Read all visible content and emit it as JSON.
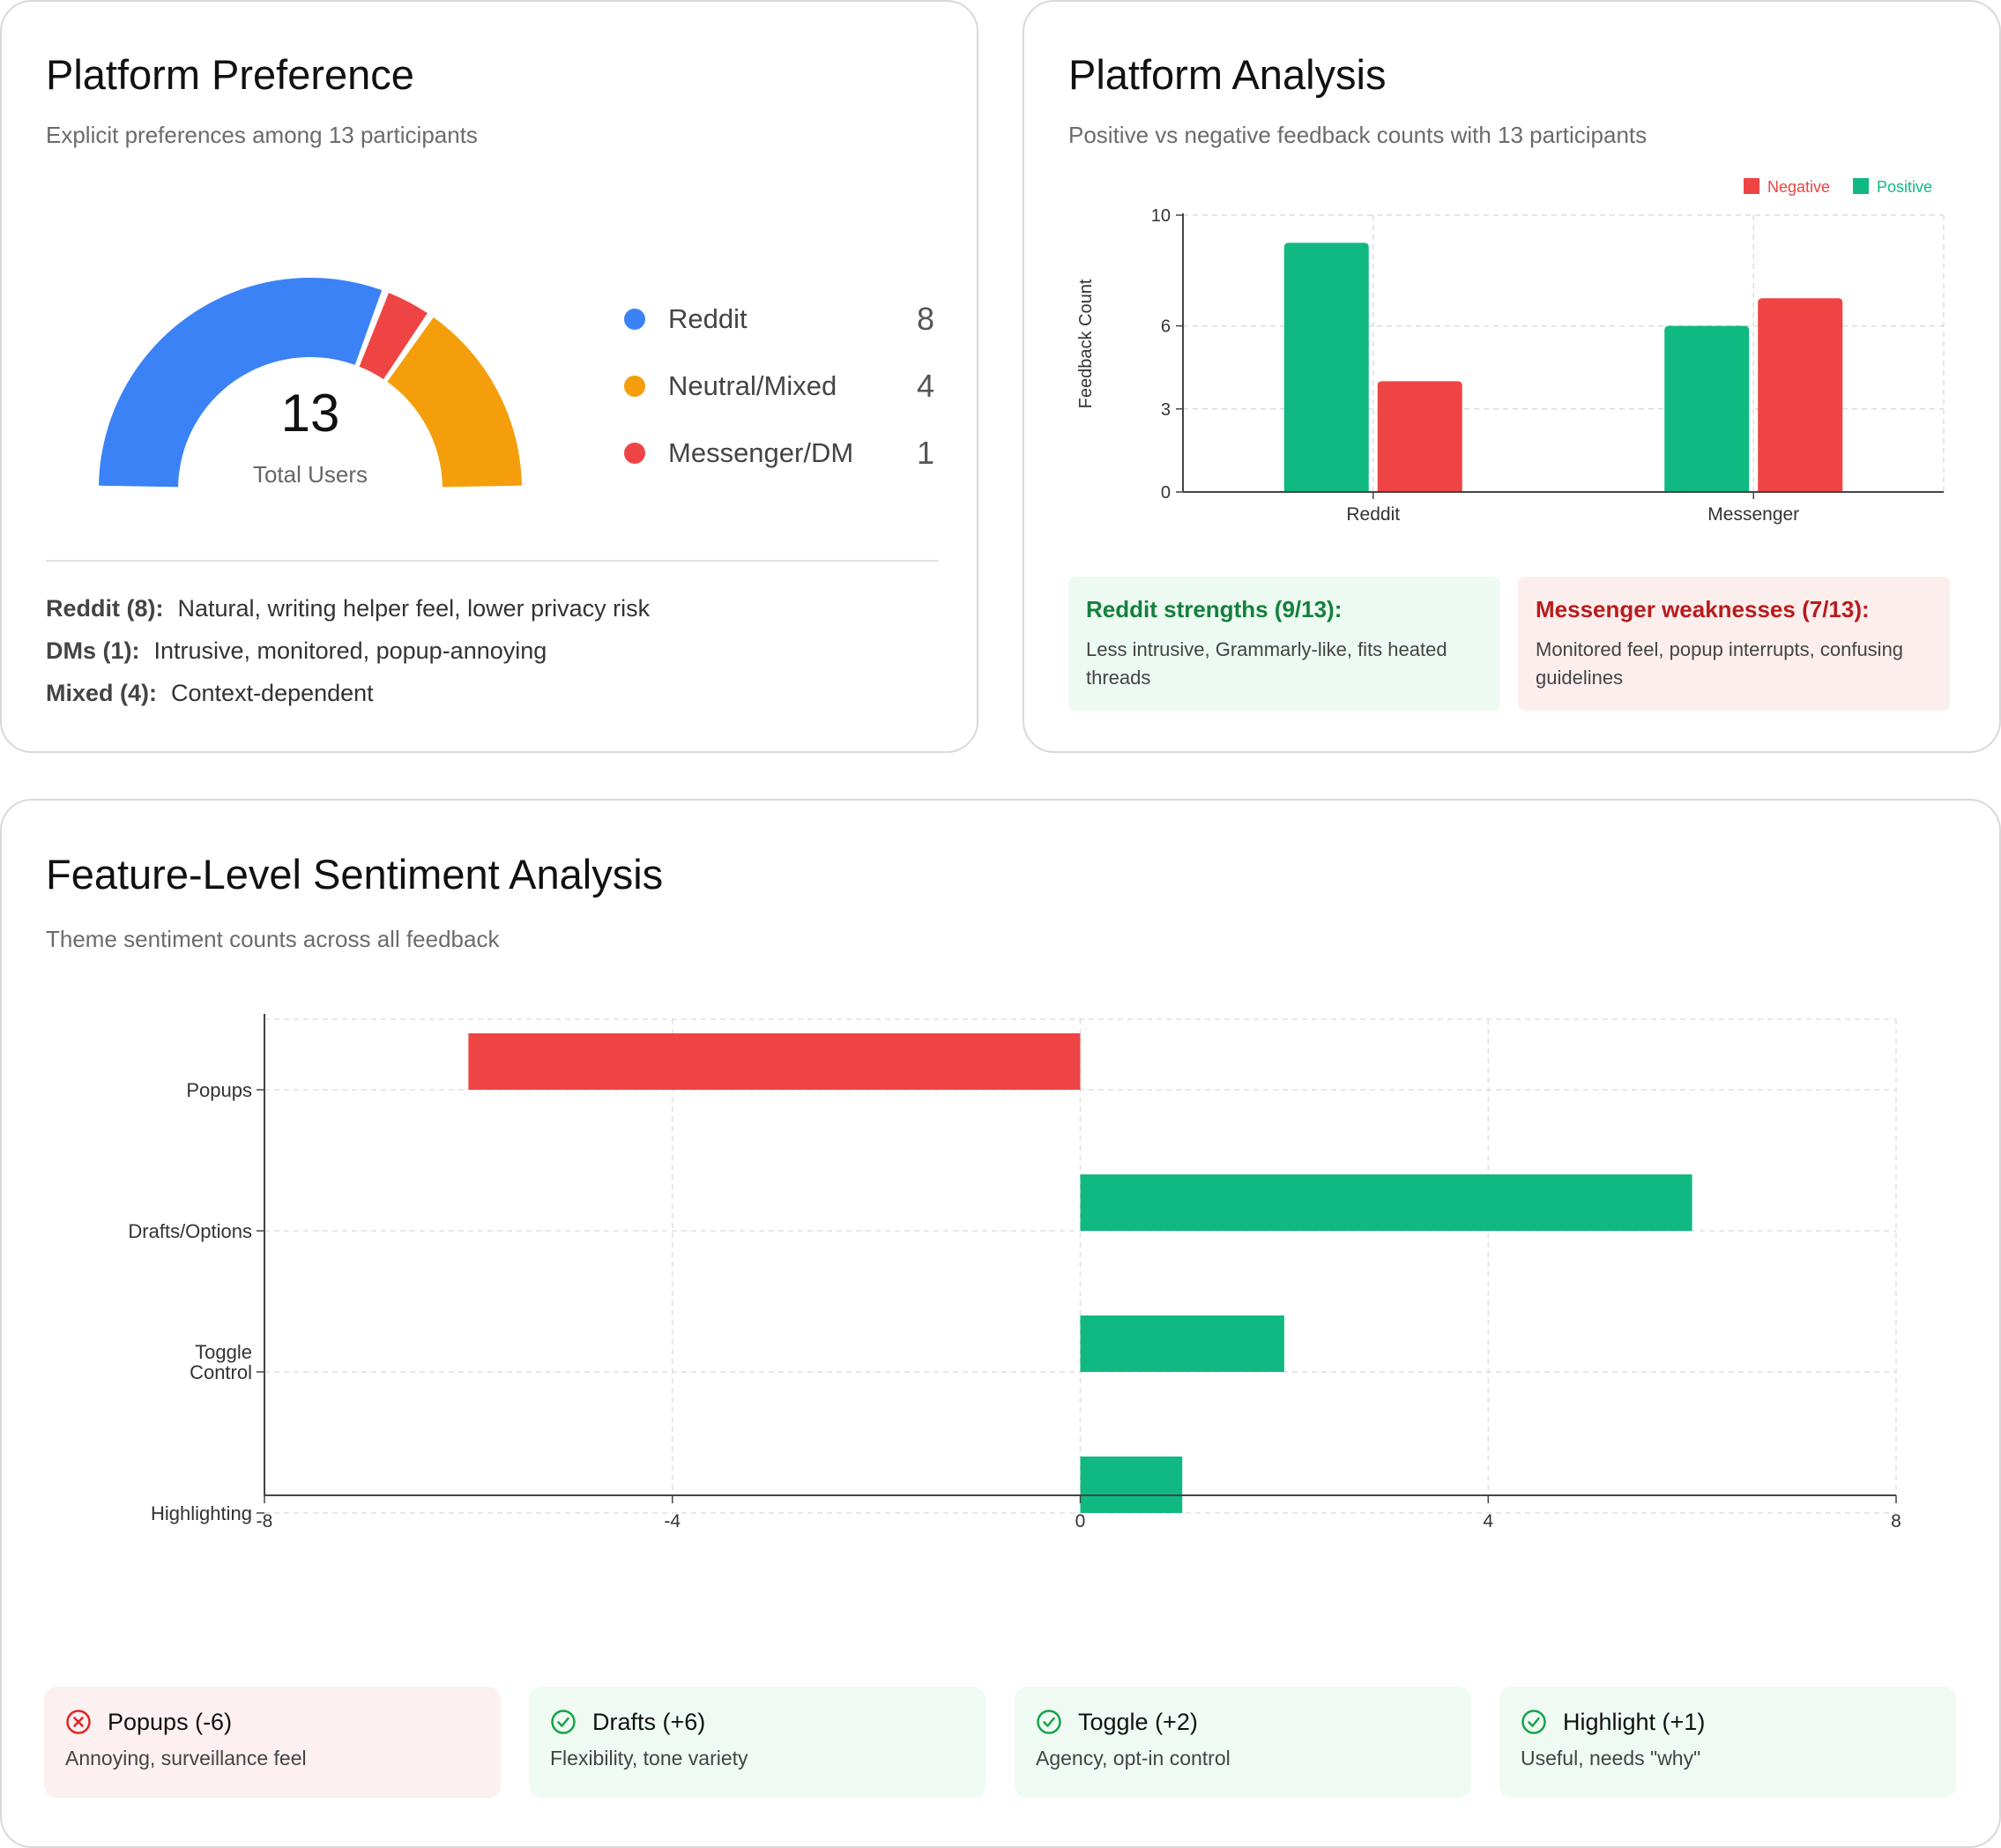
{
  "preference": {
    "title": "Platform Preference",
    "subtitle": "Explicit preferences among 13 participants",
    "total_value": "13",
    "total_label": "Total Users",
    "items": [
      {
        "label": "Reddit",
        "count": "8",
        "value": 8,
        "color": "#3b82f6"
      },
      {
        "label": "Neutral/Mixed",
        "count": "4",
        "value": 4,
        "color": "#f59e0b"
      },
      {
        "label": "Messenger/DM",
        "count": "1",
        "value": 1,
        "color": "#ef4444"
      }
    ],
    "notes": [
      {
        "key": "Reddit (8):",
        "text": "Natural, writing helper feel, lower privacy risk"
      },
      {
        "key": "DMs (1):",
        "text": "Intrusive, monitored, popup-annoying"
      },
      {
        "key": "Mixed (4):",
        "text": "Context-dependent"
      }
    ]
  },
  "platform": {
    "title": "Platform Analysis",
    "subtitle": "Positive vs negative feedback counts with 13 participants",
    "strength": {
      "title": "Reddit strengths (9/13):",
      "text": "Less intrusive, Grammarly-like, fits heated threads"
    },
    "weakness": {
      "title": "Messenger weaknesses (7/13):",
      "text": "Monitored feel, popup interrupts, confusing guidelines"
    }
  },
  "feature": {
    "title": "Feature-Level Sentiment Analysis",
    "subtitle": "Theme sentiment counts across all feedback",
    "cards": [
      {
        "title": "Popups (-6)",
        "text": "Annoying, surveillance feel",
        "sentiment": "negative"
      },
      {
        "title": "Drafts (+6)",
        "text": "Flexibility, tone variety",
        "sentiment": "positive"
      },
      {
        "title": "Toggle (+2)",
        "text": "Agency, opt-in control",
        "sentiment": "positive"
      },
      {
        "title": "Highlight (+1)",
        "text": "Useful, needs \"why\"",
        "sentiment": "positive"
      }
    ]
  },
  "colors": {
    "positive": "#10b981",
    "negative": "#ef4444",
    "blue": "#3b82f6",
    "orange": "#f59e0b"
  },
  "chart_data": [
    {
      "type": "pie",
      "variant": "semi-donut",
      "categories": [
        "Reddit",
        "Messenger/DM",
        "Neutral/Mixed"
      ],
      "values": [
        8,
        1,
        4
      ],
      "title": "Platform Preference"
    },
    {
      "type": "bar",
      "title": "Platform Analysis",
      "categories": [
        "Reddit",
        "Messenger"
      ],
      "series": [
        {
          "name": "Positive",
          "values": [
            9,
            6
          ]
        },
        {
          "name": "Negative",
          "values": [
            4,
            7
          ]
        }
      ],
      "legend": [
        "Negative",
        "Positive"
      ],
      "legend_position": "top-right",
      "xlabel": "",
      "ylabel": "Feedback Count",
      "yticks": [
        0,
        3,
        6,
        10
      ],
      "ylim": [
        0,
        10
      ],
      "grid": true
    },
    {
      "type": "bar",
      "orientation": "horizontal",
      "title": "Feature-Level Sentiment Analysis",
      "categories": [
        "Popups",
        "Drafts/Options",
        "Toggle Control",
        "Highlighting"
      ],
      "category_labels": [
        [
          "Popups"
        ],
        [
          "Drafts/Options"
        ],
        [
          "Toggle",
          "Control"
        ],
        [
          "Highlighting"
        ]
      ],
      "values": [
        -6,
        6,
        2,
        1
      ],
      "xticks": [
        "-8",
        "-4",
        "0",
        "4",
        "8"
      ],
      "xlim": [
        -8,
        8
      ],
      "grid": true
    }
  ]
}
